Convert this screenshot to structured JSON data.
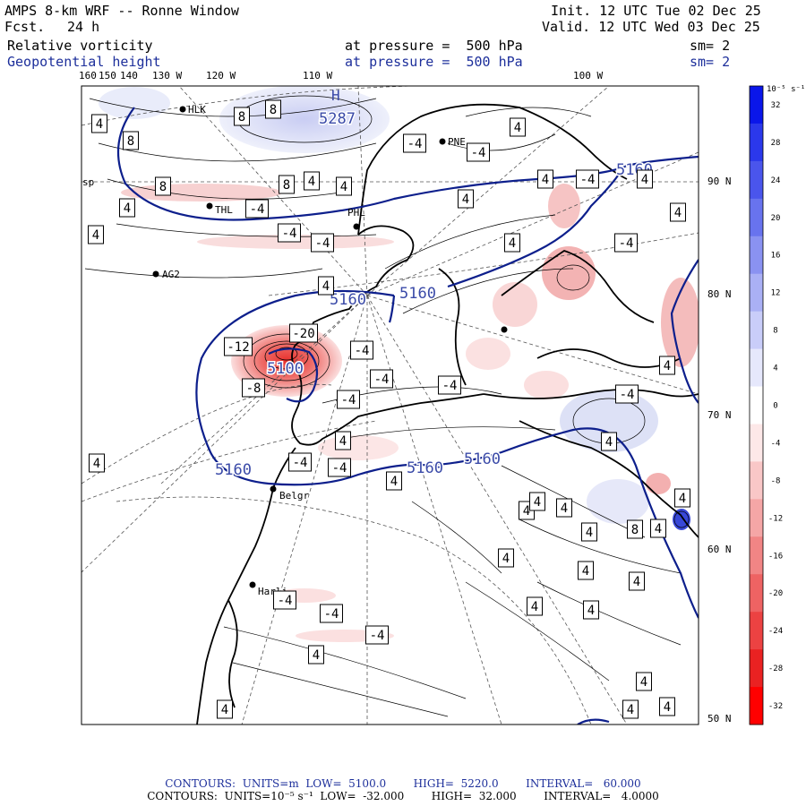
{
  "header": {
    "model_title": "AMPS 8-km WRF -- Ronne Window",
    "forecast_label": "Fcst.",
    "forecast_hours": "24 h",
    "init_time": "Init. 12 UTC Tue 02 Dec 25",
    "valid_time": "Valid. 12 UTC Wed 03 Dec 25",
    "field1_name": "Relative vorticity",
    "field1_level": "at pressure =  500 hPa",
    "field1_smooth": "sm= 2",
    "field2_name": "Geopotential height",
    "field2_level": "at pressure =  500 hPa",
    "field2_smooth": "sm= 2"
  },
  "longitude_labels": [
    "160",
    "150",
    "140",
    "130 W",
    "120 W",
    "110 W",
    "100 W"
  ],
  "latitude_labels": [
    "90 N",
    "80 N",
    "70 N",
    "60 N",
    "50 N"
  ],
  "stations": [
    "HLK",
    "PNE",
    "THL",
    "PHL",
    "AG2",
    "Belgr",
    "Harli",
    "sp",
    "H"
  ],
  "height_contour_labels": [
    "5287",
    "5160",
    "5160",
    "5160",
    "5160",
    "5100",
    "5160",
    "5160"
  ],
  "vorticity_box_labels": [
    {
      "text": "4"
    },
    {
      "text": "8"
    },
    {
      "text": "8"
    },
    {
      "text": "8"
    },
    {
      "text": "4"
    },
    {
      "text": "-4"
    },
    {
      "text": "-4"
    },
    {
      "text": "8"
    },
    {
      "text": "8"
    },
    {
      "text": "4"
    },
    {
      "text": "4"
    },
    {
      "text": "4"
    },
    {
      "text": "4"
    },
    {
      "text": "4"
    },
    {
      "text": "4"
    },
    {
      "text": "-4"
    },
    {
      "text": "-4"
    },
    {
      "text": "4"
    },
    {
      "text": "4"
    },
    {
      "text": "-4"
    },
    {
      "text": "-4"
    },
    {
      "text": "4"
    },
    {
      "text": "-4"
    },
    {
      "text": "4"
    },
    {
      "text": "-12"
    },
    {
      "text": "-20"
    },
    {
      "text": "-4"
    },
    {
      "text": "-8"
    },
    {
      "text": "-4"
    },
    {
      "text": "-4"
    },
    {
      "text": "-4"
    },
    {
      "text": "4"
    },
    {
      "text": "4"
    },
    {
      "text": "-4"
    },
    {
      "text": "4"
    },
    {
      "text": "4"
    },
    {
      "text": "-4"
    },
    {
      "text": "-4"
    },
    {
      "text": "4"
    },
    {
      "text": "4"
    },
    {
      "text": "8"
    },
    {
      "text": "4"
    },
    {
      "text": "4"
    },
    {
      "text": "4"
    },
    {
      "text": "4"
    },
    {
      "text": "4"
    },
    {
      "text": "4"
    },
    {
      "text": "-4"
    },
    {
      "text": "-4"
    },
    {
      "text": "-4"
    },
    {
      "text": "4"
    },
    {
      "text": "4"
    },
    {
      "text": "4"
    },
    {
      "text": "4"
    },
    {
      "text": "4"
    },
    {
      "text": "4"
    },
    {
      "text": "4"
    },
    {
      "text": "4"
    },
    {
      "text": "4"
    }
  ],
  "colorbar": {
    "unit_label": "10⁻⁵ s⁻¹",
    "ticks": [
      "32",
      "28",
      "24",
      "20",
      "16",
      "12",
      "8",
      "4",
      "0",
      "-4",
      "-8",
      "-12",
      "-16",
      "-20",
      "-24",
      "-28",
      "-32"
    ],
    "colors": [
      "#0a16ea",
      "#2b38eb",
      "#4a55ec",
      "#6873ee",
      "#8a92f1",
      "#aab0f5",
      "#c9cdf9",
      "#e6e8fc",
      "#ffffff",
      "#fde8e8",
      "#f9c7c7",
      "#f5a6a6",
      "#f18585",
      "#ee6363",
      "#ec4242",
      "#ea2222",
      "#ff0000"
    ]
  },
  "footer": {
    "line1": "CONTOURS:  UNITS=m  LOW=  5100.0        HIGH=  5220.0        INTERVAL=   60.000",
    "line2": "CONTOURS:  UNITS=10⁻⁵ s⁻¹  LOW=  -32.000        HIGH=  32.000        INTERVAL=   4.0000"
  },
  "colors": {
    "height_contour": "#0d1f8c",
    "height_label": "#3a4aa8",
    "negative_vorticity": "#e8302c",
    "positive_vorticity": "#3848d8"
  }
}
